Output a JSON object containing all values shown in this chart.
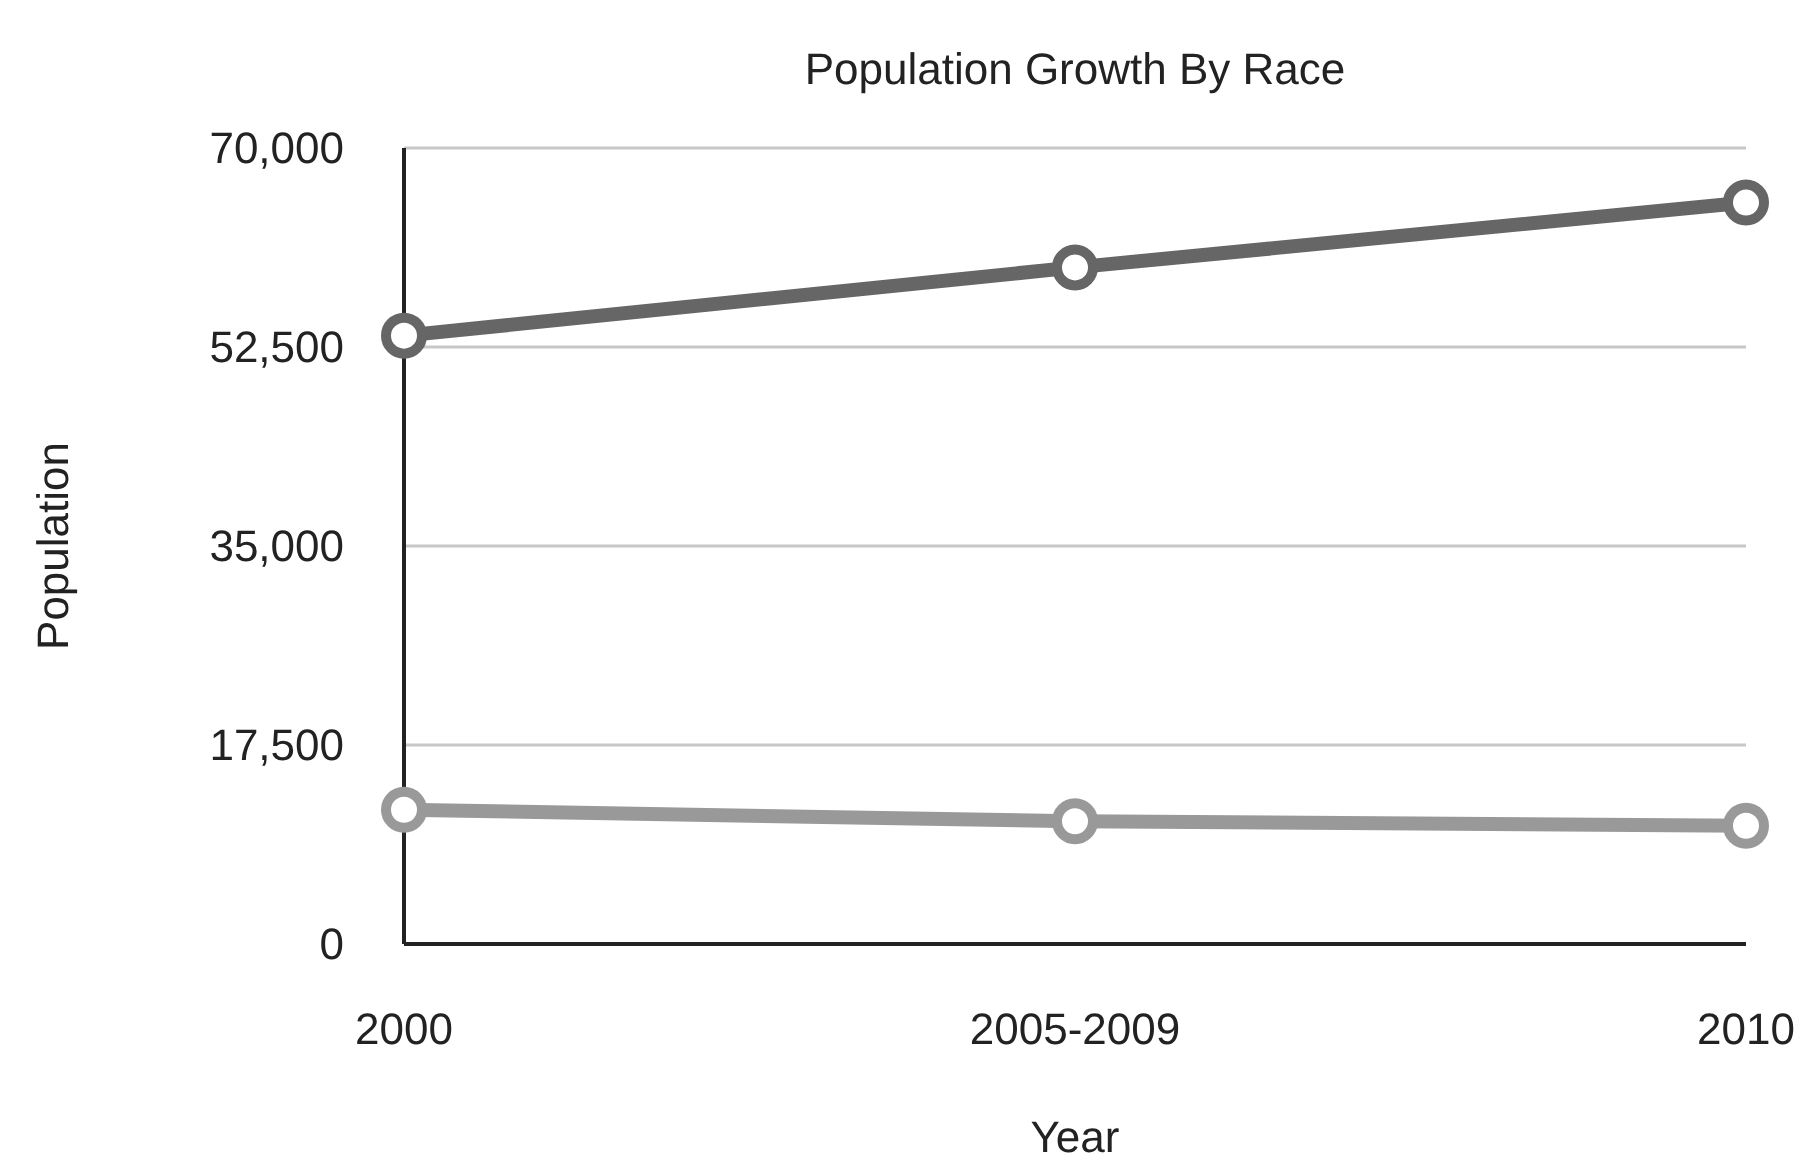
{
  "chart_data": {
    "type": "line",
    "title": "Population Growth By Race",
    "xlabel": "Year",
    "ylabel": "Population",
    "categories": [
      "2000",
      "2005-2009",
      "2010"
    ],
    "series": [
      {
        "color": "#666666",
        "values": [
          53500,
          59500,
          65200
        ]
      },
      {
        "color": "#999999",
        "values": [
          11800,
          10800,
          10400
        ]
      }
    ],
    "ylim": [
      0,
      70000
    ],
    "yticks": [
      0,
      {
        "value": 17500,
        "label": "17,500"
      },
      {
        "value": 35000,
        "label": "35,000"
      },
      {
        "value": 52500,
        "label": "52,500"
      },
      {
        "value": 70000,
        "label": "70,000"
      }
    ],
    "grid": "y",
    "marker": "circle",
    "line_style": "solid"
  }
}
